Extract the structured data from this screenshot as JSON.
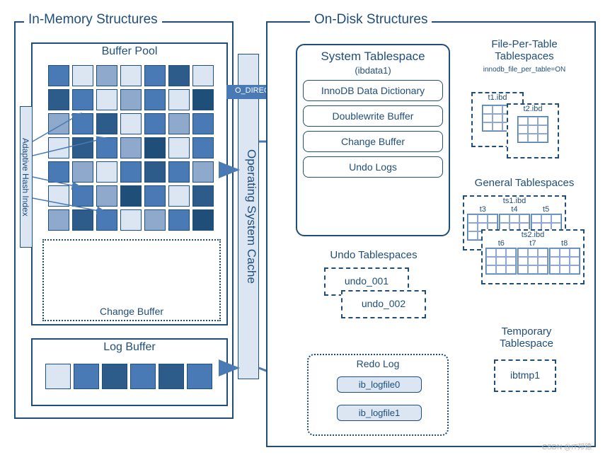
{
  "colors": {
    "border": "#1f4e79",
    "light": "#dce6f2",
    "mid": "#8ea9cc",
    "dark": "#4a7ab5",
    "darker": "#2e5c8a",
    "darkest": "#1f4e79",
    "white": "#ffffff"
  },
  "inMemory": {
    "title": "In-Memory Structures",
    "bufferPool": {
      "title": "Buffer Pool",
      "ahi": "Adaptive Hash Index",
      "grid": {
        "rows": 7,
        "cols": 7,
        "colors": [
          [
            "#4a7ab5",
            "#dce6f2",
            "#8ea9cc",
            "#dce6f2",
            "#4a7ab5",
            "#2e5c8a",
            "#dce6f2"
          ],
          [
            "#2e5c8a",
            "#4a7ab5",
            "#dce6f2",
            "#8ea9cc",
            "#4a7ab5",
            "#dce6f2",
            "#1f4e79"
          ],
          [
            "#8ea9cc",
            "#4a7ab5",
            "#2e5c8a",
            "#dce6f2",
            "#4a7ab5",
            "#8ea9cc",
            "#4a7ab5"
          ],
          [
            "#dce6f2",
            "#2e5c8a",
            "#4a7ab5",
            "#8ea9cc",
            "#1f4e79",
            "#dce6f2",
            "#4a7ab5"
          ],
          [
            "#4a7ab5",
            "#8ea9cc",
            "#dce6f2",
            "#4a7ab5",
            "#2e5c8a",
            "#4a7ab5",
            "#8ea9cc"
          ],
          [
            "#dce6f2",
            "#4a7ab5",
            "#8ea9cc",
            "#1f4e79",
            "#4a7ab5",
            "#dce6f2",
            "#2e5c8a"
          ],
          [
            "#8ea9cc",
            "#2e5c8a",
            "#4a7ab5",
            "#dce6f2",
            "#8ea9cc",
            "#4a7ab5",
            "#1f4e79"
          ]
        ]
      },
      "changeBuffer": "Change Buffer"
    },
    "logBuffer": {
      "title": "Log Buffer",
      "cells": [
        "#dce6f2",
        "#4a7ab5",
        "#2e5c8a",
        "#4a7ab5",
        "#2e5c8a",
        "#4a7ab5"
      ]
    }
  },
  "osc": "Operating System Cache",
  "oDirect": "O_DIRECT",
  "onDisk": {
    "title": "On-Disk Structures",
    "systemTablespace": {
      "title": "System Tablespace",
      "subtitle": "(ibdata1)",
      "items": [
        "InnoDB Data Dictionary",
        "Doublewrite Buffer",
        "Change Buffer",
        "Undo Logs"
      ]
    },
    "filePerTable": {
      "title": "File-Per-Table Tablespaces",
      "subtitle": "innodb_file_per_table=ON",
      "files": [
        "t1.ibd",
        "t2.ibd"
      ]
    },
    "general": {
      "title": "General Tablespaces",
      "groups": [
        {
          "file": "ts1.ibd",
          "tables": [
            "t3",
            "t4",
            "t5"
          ]
        },
        {
          "file": "ts2.ibd",
          "tables": [
            "t6",
            "t7",
            "t8"
          ]
        }
      ]
    },
    "undo": {
      "title": "Undo Tablespaces",
      "files": [
        "undo_001",
        "undo_002"
      ]
    },
    "redo": {
      "title": "Redo Log",
      "files": [
        "ib_logfile0",
        "ib_logfile1"
      ]
    },
    "temp": {
      "title": "Temporary Tablespace",
      "file": "ibtmp1"
    }
  },
  "watermark": "CSDN @IT邦德"
}
